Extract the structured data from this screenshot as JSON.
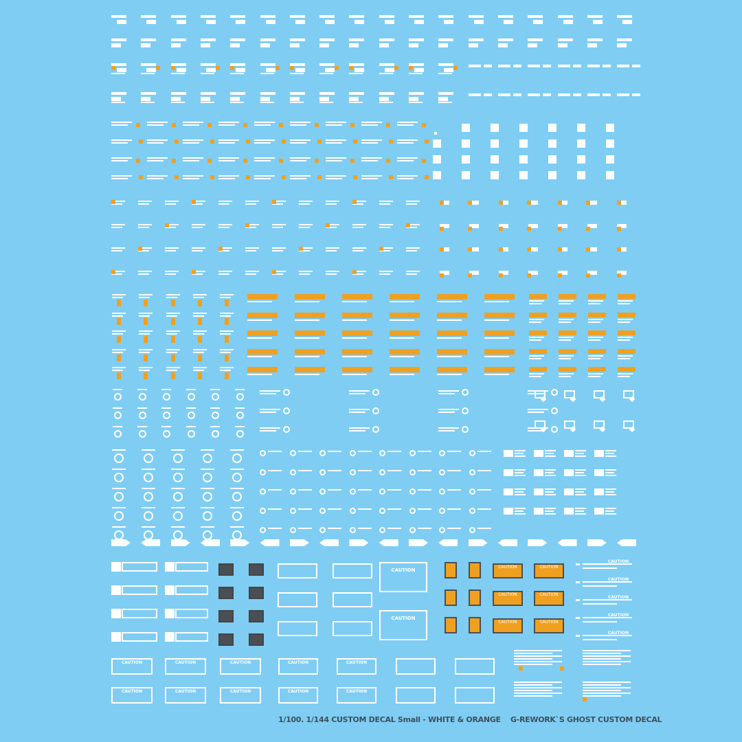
{
  "sheet": {
    "caution_label": "CAUTION",
    "colors": {
      "background": "#7fcdf3",
      "white": "#ffffff",
      "orange": "#f0a020",
      "dark": "#4a4f55"
    }
  },
  "footer": {
    "title": "1/100. 1/144 CUSTOM DECAL Small - WHITE & ORANGE",
    "brand": "G-REWORK`S GHOST CUSTOM DECAL"
  }
}
